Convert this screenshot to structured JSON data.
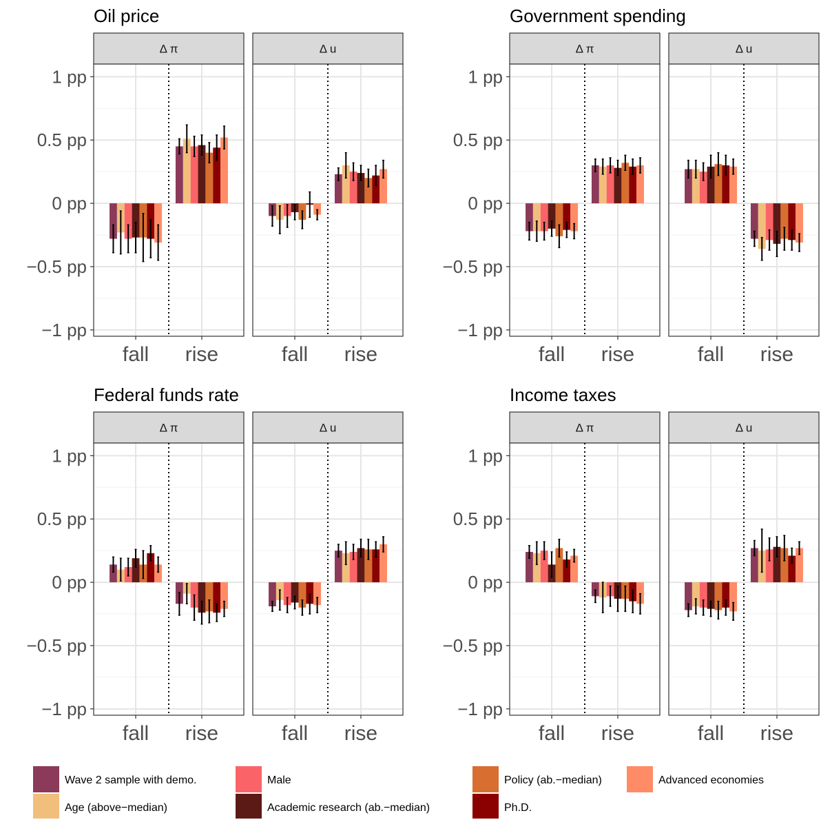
{
  "chart_data": {
    "type": "bar",
    "x_categories": [
      "fall",
      "rise"
    ],
    "y_ticks": [
      1,
      0.5,
      0,
      -0.5,
      -1
    ],
    "y_tick_labels": [
      "1 pp",
      "0.5 pp",
      "0 pp",
      "−0.5 pp",
      "−1 pp"
    ],
    "ylim": [
      -1.05,
      1.1
    ],
    "grid": true,
    "legend_position": "bottom",
    "series": [
      {
        "name": "Wave 2 sample with demo.",
        "color": "#8B3A5A"
      },
      {
        "name": "Age (above−median)",
        "color": "#F2BE7C"
      },
      {
        "name": "Male",
        "color": "#FA6468"
      },
      {
        "name": "Academic research (ab.−median)",
        "color": "#5C1A16"
      },
      {
        "name": "Policy (ab.−median)",
        "color": "#D86F30"
      },
      {
        "name": "Ph.D.",
        "color": "#8B0000"
      },
      {
        "name": "Advanced economies",
        "color": "#FF8C66"
      }
    ],
    "panels": [
      {
        "title": "Oil price",
        "facets": [
          {
            "label": "Δ π",
            "fall": {
              "values": [
                -0.28,
                -0.23,
                -0.28,
                -0.27,
                -0.27,
                -0.28,
                -0.31
              ],
              "errors": [
                0.11,
                0.17,
                0.11,
                0.12,
                0.19,
                0.15,
                0.14
              ]
            },
            "rise": {
              "values": [
                0.45,
                0.51,
                0.45,
                0.46,
                0.4,
                0.44,
                0.52
              ],
              "errors": [
                0.06,
                0.11,
                0.08,
                0.08,
                0.08,
                0.1,
                0.09
              ]
            }
          },
          {
            "label": "Δ u",
            "fall": {
              "values": [
                -0.1,
                -0.13,
                -0.1,
                -0.07,
                -0.13,
                -0.01,
                -0.09
              ],
              "errors": [
                0.08,
                0.11,
                0.09,
                0.06,
                0.07,
                0.1,
                0.04
              ]
            },
            "rise": {
              "values": [
                0.23,
                0.3,
                0.25,
                0.24,
                0.2,
                0.22,
                0.27
              ],
              "errors": [
                0.05,
                0.1,
                0.07,
                0.06,
                0.07,
                0.08,
                0.07
              ]
            }
          }
        ]
      },
      {
        "title": "Government spending",
        "facets": [
          {
            "label": "Δ π",
            "fall": {
              "values": [
                -0.22,
                -0.22,
                -0.22,
                -0.2,
                -0.26,
                -0.21,
                -0.22
              ],
              "errors": [
                0.07,
                0.08,
                0.07,
                0.06,
                0.09,
                0.06,
                0.06
              ]
            },
            "rise": {
              "values": [
                0.3,
                0.29,
                0.3,
                0.28,
                0.32,
                0.29,
                0.3
              ],
              "errors": [
                0.05,
                0.06,
                0.06,
                0.06,
                0.06,
                0.06,
                0.06
              ]
            }
          },
          {
            "label": "Δ u",
            "fall": {
              "values": [
                0.27,
                0.27,
                0.25,
                0.29,
                0.31,
                0.3,
                0.29
              ],
              "errors": [
                0.07,
                0.07,
                0.07,
                0.09,
                0.09,
                0.08,
                0.06
              ]
            },
            "rise": {
              "values": [
                -0.28,
                -0.36,
                -0.29,
                -0.32,
                -0.28,
                -0.29,
                -0.31
              ],
              "errors": [
                0.06,
                0.09,
                0.08,
                0.1,
                0.09,
                0.08,
                0.07
              ]
            }
          }
        ]
      },
      {
        "title": "Federal funds rate",
        "facets": [
          {
            "label": "Δ π",
            "fall": {
              "values": [
                0.14,
                0.1,
                0.12,
                0.19,
                0.14,
                0.23,
                0.14
              ],
              "errors": [
                0.06,
                0.09,
                0.07,
                0.07,
                0.11,
                0.06,
                0.06
              ]
            },
            "rise": {
              "values": [
                -0.17,
                -0.09,
                -0.2,
                -0.24,
                -0.23,
                -0.24,
                -0.21
              ],
              "errors": [
                0.09,
                0.08,
                0.1,
                0.09,
                0.09,
                0.07,
                0.06
              ]
            }
          },
          {
            "label": "Δ u",
            "fall": {
              "values": [
                -0.19,
                -0.14,
                -0.18,
                -0.16,
                -0.2,
                -0.17,
                -0.18
              ],
              "errors": [
                0.04,
                0.08,
                0.06,
                0.05,
                0.06,
                0.08,
                0.06
              ]
            },
            "rise": {
              "values": [
                0.25,
                0.23,
                0.24,
                0.27,
                0.26,
                0.26,
                0.3
              ],
              "errors": [
                0.05,
                0.09,
                0.06,
                0.07,
                0.08,
                0.06,
                0.06
              ]
            }
          }
        ]
      },
      {
        "title": "Income taxes",
        "facets": [
          {
            "label": "Δ π",
            "fall": {
              "values": [
                0.24,
                0.23,
                0.25,
                0.14,
                0.27,
                0.18,
                0.21
              ],
              "errors": [
                0.05,
                0.09,
                0.07,
                0.1,
                0.07,
                0.06,
                0.05
              ]
            },
            "rise": {
              "values": [
                -0.11,
                -0.12,
                -0.11,
                -0.13,
                -0.13,
                -0.15,
                -0.17
              ],
              "errors": [
                0.05,
                0.12,
                0.08,
                0.1,
                0.1,
                0.09,
                0.08
              ]
            }
          },
          {
            "label": "Δ u",
            "fall": {
              "values": [
                -0.22,
                -0.19,
                -0.2,
                -0.21,
                -0.22,
                -0.2,
                -0.23
              ],
              "errors": [
                0.05,
                0.06,
                0.06,
                0.06,
                0.07,
                0.06,
                0.07
              ]
            },
            "rise": {
              "values": [
                0.27,
                0.25,
                0.26,
                0.28,
                0.27,
                0.21,
                0.27
              ],
              "errors": [
                0.06,
                0.17,
                0.09,
                0.08,
                0.1,
                0.06,
                0.05
              ]
            }
          }
        ]
      }
    ]
  }
}
